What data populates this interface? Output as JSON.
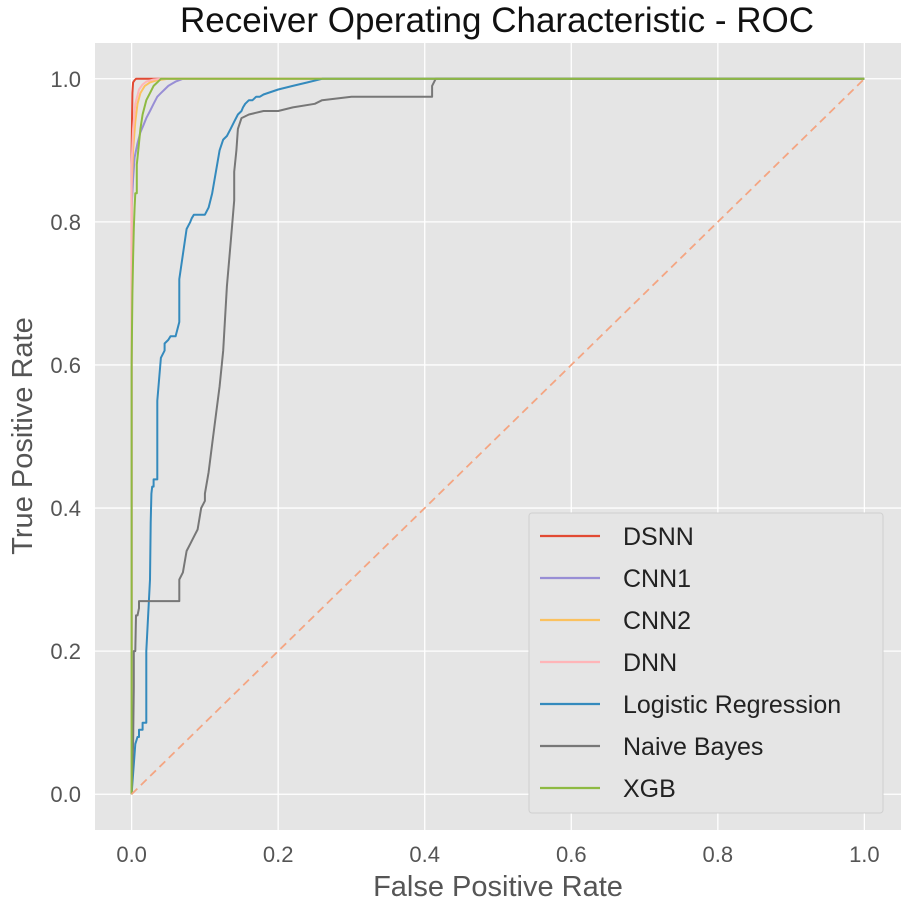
{
  "chart_data": {
    "type": "line",
    "title": "Receiver Operating Characteristic - ROC",
    "xlabel": "False Positive Rate",
    "ylabel": "True Positive Rate",
    "xlim": [
      -0.05,
      1.05
    ],
    "ylim": [
      -0.05,
      1.05
    ],
    "xticks": [
      0.0,
      0.2,
      0.4,
      0.6,
      0.8,
      1.0
    ],
    "xtick_labels": [
      "0.0",
      "0.2",
      "0.4",
      "0.6",
      "0.8",
      "1.0"
    ],
    "yticks": [
      0.0,
      0.2,
      0.4,
      0.6,
      0.8,
      1.0
    ],
    "ytick_labels": [
      "0.0",
      "0.2",
      "0.4",
      "0.6",
      "0.8",
      "1.0"
    ],
    "grid": true,
    "background": "#e5e5e5",
    "legend_position": "lower-right",
    "series": [
      {
        "name": "DSNN",
        "color": "#e24a33",
        "x": [
          0.0,
          0.0,
          0.001,
          0.002,
          0.004,
          0.006,
          0.01,
          0.02,
          1.0
        ],
        "y": [
          0.0,
          0.9,
          0.98,
          0.995,
          0.998,
          1.0,
          1.0,
          1.0,
          1.0
        ]
      },
      {
        "name": "CNN1",
        "color": "#988ed5",
        "x": [
          0.0,
          0.0,
          0.002,
          0.004,
          0.008,
          0.012,
          0.016,
          0.02,
          0.025,
          0.03,
          0.035,
          0.04,
          0.045,
          0.05,
          0.055,
          0.06,
          0.065,
          0.07,
          0.08,
          1.0
        ],
        "y": [
          0.0,
          0.82,
          0.86,
          0.89,
          0.91,
          0.925,
          0.935,
          0.945,
          0.955,
          0.965,
          0.975,
          0.98,
          0.985,
          0.99,
          0.993,
          0.996,
          0.998,
          1.0,
          1.0,
          1.0
        ]
      },
      {
        "name": "CNN2",
        "color": "#fbc15e",
        "x": [
          0.0,
          0.0,
          0.002,
          0.005,
          0.008,
          0.012,
          0.018,
          0.025,
          0.035,
          0.05,
          1.0
        ],
        "y": [
          0.0,
          0.85,
          0.9,
          0.94,
          0.965,
          0.98,
          0.99,
          0.995,
          0.998,
          1.0,
          1.0
        ]
      },
      {
        "name": "DNN",
        "color": "#ffb5b8",
        "x": [
          0.0,
          0.0,
          0.002,
          0.005,
          0.01,
          0.015,
          0.02,
          0.03,
          0.04,
          1.0
        ],
        "y": [
          0.0,
          0.88,
          0.93,
          0.965,
          0.985,
          0.992,
          0.996,
          0.999,
          1.0,
          1.0
        ]
      },
      {
        "name": "Logistic Regression",
        "color": "#348abd",
        "x": [
          0.0,
          0.005,
          0.008,
          0.01,
          0.01,
          0.015,
          0.015,
          0.02,
          0.02,
          0.025,
          0.026,
          0.027,
          0.028,
          0.03,
          0.03,
          0.035,
          0.035,
          0.04,
          0.045,
          0.045,
          0.05,
          0.053,
          0.06,
          0.065,
          0.065,
          0.075,
          0.08,
          0.08,
          0.082,
          0.085,
          0.09,
          0.1,
          0.105,
          0.11,
          0.12,
          0.125,
          0.13,
          0.135,
          0.14,
          0.145,
          0.15,
          0.152,
          0.155,
          0.16,
          0.165,
          0.17,
          0.175,
          0.18,
          0.2,
          0.22,
          0.24,
          0.26,
          0.3,
          0.35,
          0.4,
          1.0
        ],
        "y": [
          0.0,
          0.07,
          0.08,
          0.08,
          0.09,
          0.09,
          0.1,
          0.1,
          0.2,
          0.3,
          0.38,
          0.42,
          0.43,
          0.43,
          0.44,
          0.44,
          0.55,
          0.61,
          0.62,
          0.63,
          0.635,
          0.64,
          0.64,
          0.66,
          0.72,
          0.79,
          0.8,
          0.8,
          0.805,
          0.81,
          0.81,
          0.81,
          0.82,
          0.84,
          0.9,
          0.915,
          0.92,
          0.93,
          0.94,
          0.95,
          0.955,
          0.96,
          0.965,
          0.97,
          0.97,
          0.975,
          0.975,
          0.978,
          0.985,
          0.99,
          0.995,
          1.0,
          1.0,
          1.0,
          1.0,
          1.0
        ]
      },
      {
        "name": "Naive Bayes",
        "color": "#777777",
        "x": [
          0.0,
          0.002,
          0.003,
          0.003,
          0.005,
          0.006,
          0.008,
          0.01,
          0.01,
          0.02,
          0.03,
          0.04,
          0.05,
          0.06,
          0.065,
          0.065,
          0.07,
          0.075,
          0.08,
          0.085,
          0.09,
          0.095,
          0.1,
          0.1,
          0.105,
          0.11,
          0.115,
          0.12,
          0.125,
          0.13,
          0.135,
          0.14,
          0.14,
          0.143,
          0.145,
          0.15,
          0.16,
          0.18,
          0.2,
          0.22,
          0.25,
          0.26,
          0.3,
          0.35,
          0.4,
          0.41,
          0.41,
          0.415,
          0.5,
          1.0
        ],
        "y": [
          0.0,
          0.07,
          0.15,
          0.2,
          0.2,
          0.25,
          0.25,
          0.26,
          0.27,
          0.27,
          0.27,
          0.27,
          0.27,
          0.27,
          0.27,
          0.3,
          0.31,
          0.34,
          0.35,
          0.36,
          0.37,
          0.4,
          0.41,
          0.42,
          0.45,
          0.49,
          0.53,
          0.57,
          0.62,
          0.71,
          0.77,
          0.83,
          0.87,
          0.9,
          0.93,
          0.945,
          0.95,
          0.955,
          0.955,
          0.96,
          0.965,
          0.97,
          0.975,
          0.975,
          0.975,
          0.975,
          0.99,
          1.0,
          1.0,
          1.0
        ]
      },
      {
        "name": "XGB",
        "color": "#8eba42",
        "x": [
          0.0,
          0.0,
          0.0,
          0.001,
          0.002,
          0.003,
          0.004,
          0.005,
          0.007,
          0.007,
          0.01,
          0.012,
          0.015,
          0.02,
          0.025,
          0.03,
          0.035,
          0.04,
          1.0
        ],
        "y": [
          0.0,
          0.25,
          0.6,
          0.7,
          0.75,
          0.79,
          0.82,
          0.84,
          0.84,
          0.88,
          0.91,
          0.93,
          0.95,
          0.97,
          0.98,
          0.99,
          0.995,
          1.0,
          1.0
        ]
      },
      {
        "name": "",
        "color": "#f4a582",
        "dashed": true,
        "x": [
          0.0,
          1.0
        ],
        "y": [
          0.0,
          1.0
        ]
      }
    ]
  }
}
